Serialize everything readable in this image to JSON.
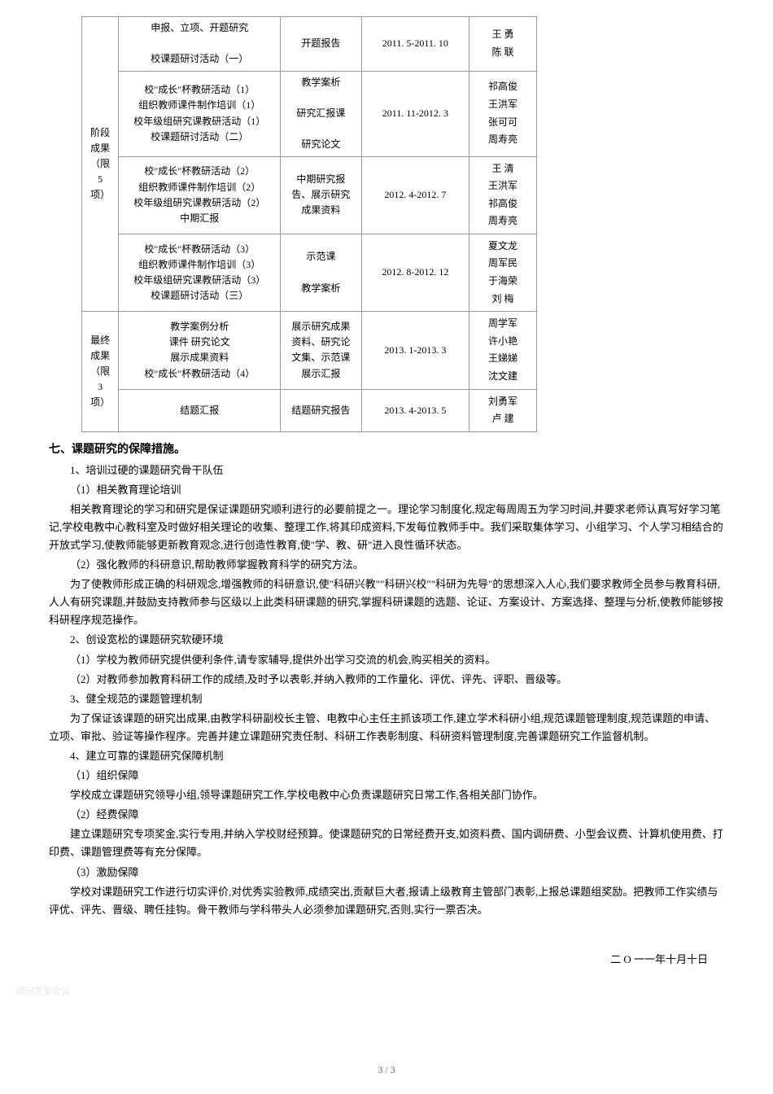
{
  "table": {
    "group1": {
      "label": "阶段\n成果\n（限5\n项）",
      "rows": [
        {
          "activity": "申报、立项、开题研究\n\n校课题研讨活动（一）",
          "output": "开题报告",
          "date": "2011. 5-2011. 10",
          "names": "王 勇\n陈 联"
        },
        {
          "activity": "校\"成长\"杯教研活动（1）\n组织教师课件制作培训（1）\n校年级组研究课教研活动（1）\n校课题研讨活动（二）",
          "output": "教学案析\n\n研究汇报课\n\n研究论文",
          "date": "2011. 11-2012. 3",
          "names": "祁高俊\n王洪军\n张可可\n周寿亮"
        },
        {
          "activity": "校\"成长\"杯教研活动（2）\n组织教师课件制作培训（2）\n校年级组研究课教研活动（2）\n中期汇报",
          "output": "中期研究报\n告、展示研究\n成果资料",
          "date": "2012. 4-2012. 7",
          "names": "王 清\n王洪军\n祁高俊\n周寿亮"
        },
        {
          "activity": "校\"成长\"杯教研活动（3）\n组织教师课件制作培训（3）\n校年级组研究课教研活动（3）\n校课题研讨活动（三）",
          "output": "示范课\n\n教学案析",
          "date": "2012. 8-2012. 12",
          "names": "夏文龙\n周军民\n于海荣\n刘 梅"
        }
      ]
    },
    "group2": {
      "label": "最终\n成果\n（限3\n项）",
      "rows": [
        {
          "activity": "教学案例分析\n课件 研究论文\n展示成果资料\n校\"成长\"杯教研活动（4）",
          "output": "展示研究成果\n资料、研究论\n文集、示范课\n展示汇报",
          "date": "2013. 1-2013. 3",
          "names": "周学军\n许小艳\n王娣娣\n沈文建"
        },
        {
          "activity": "结题汇报",
          "output": "结题研究报告",
          "date": "2013. 4-2013. 5",
          "names": "刘勇军\n卢 建"
        }
      ]
    }
  },
  "section": {
    "title": "七、课题研究的保障措施。",
    "p1_title": "1、培训过硬的课题研究骨干队伍",
    "p1_1": "（1）相关教育理论培训",
    "p1_1_body": "相关教育理论的学习和研究是保证课题研究顺利进行的必要前提之一。理论学习制度化,规定每周周五为学习时间,并要求老师认真写好学习笔记,学校电教中心教科室及时做好相关理论的收集、整理工作,将其印成资料,下发每位教师手中。我们采取集体学习、小组学习、个人学习相结合的开放式学习,使教师能够更新教育观念,进行创造性教育,使\"学、教、研\"进入良性循环状态。",
    "p1_2": "（2）强化教师的科研意识,帮助教师掌握教育科学的研究方法。",
    "p1_2_body": "为了使教师形成正确的科研观念,增强教师的科研意识,使\"科研兴教\"\"科研兴校\"\"科研为先导\"的思想深入人心,我们要求教师全员参与教育科研,人人有研究课题,并鼓励支持教师参与区级以上此类科研课题的研究,掌握科研课题的选题、论证、方案设计、方案选择、整理与分析,使教师能够按科研程序规范操作。",
    "p2_title": "2、创设宽松的课题研究软硬环境",
    "p2_1": "（1）学校为教师研究提供便利条件,请专家辅导,提供外出学习交流的机会,购买相关的资料。",
    "p2_2": "（2）对教师参加教育科研工作的成绩,及时予以表彰,并纳入教师的工作量化、评优、评先、评职、晋级等。",
    "p3_title": "3、健全规范的课题管理机制",
    "p3_body": "为了保证该课题的研究出成果,由教学科研副校长主管、电教中心主任主抓该项工作,建立学术科研小组,规范课题管理制度,规范课题的申请、立项、审批、验证等操作程序。完善并建立课题研究责任制、科研工作表彰制度、科研资料管理制度,完善课题研究工作监督机制。",
    "p4_title": "4、建立可靠的课题研究保障机制",
    "p4_1": "（1）组织保障",
    "p4_1_body": "学校成立课题研究领导小组,领导课题研究工作,学校电教中心负责课题研究日常工作,各相关部门协作。",
    "p4_2": "（2）经费保障",
    "p4_2_body": "建立课题研究专项奖金,实行专用,并纳入学校财经预算。使课题研究的日常经费开支,如资料费、国内调研费、小型会议费、计算机使用费、打印费、课题管理费等有充分保障。",
    "p4_3": "（3）激励保障",
    "p4_3_body": "学校对课题研究工作进行切实评价,对优秀实验教师,成绩突出,贡献巨大者,报请上级教育主管部门表彰,上报总课题组奖励。把教师工作实绩与评优、评先、晋级、聘任挂钩。骨干教师与学科带头人必须参加课题研究,否则,实行一票否决。"
  },
  "date": "二 O 一一年十月十日",
  "watermark": "随河党委会议",
  "pageNumber": "3 / 3"
}
